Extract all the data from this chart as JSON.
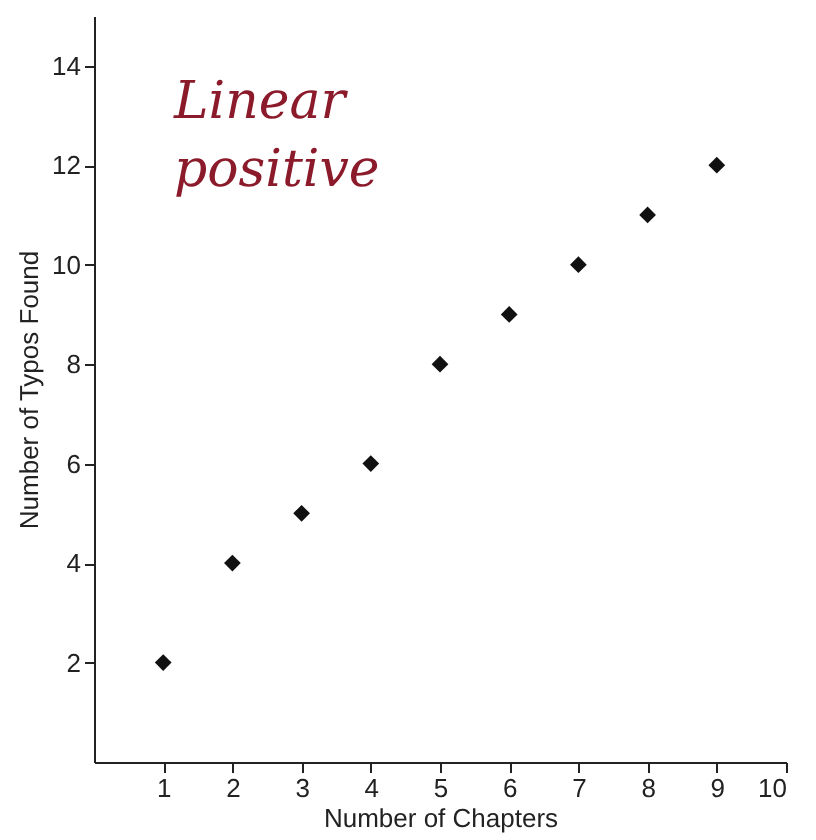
{
  "chart_data": {
    "type": "scatter",
    "xlabel": "Number of Chapters",
    "ylabel": "Number of Typos Found",
    "x": [
      1,
      2,
      3,
      4,
      5,
      6,
      7,
      8,
      9
    ],
    "values": [
      2,
      4,
      5,
      6,
      8,
      9,
      10,
      11,
      12
    ],
    "color": "#111111",
    "marker": "diamond",
    "xlim": [
      0,
      10
    ],
    "xticks": [
      1,
      2,
      3,
      4,
      5,
      6,
      7,
      8,
      9,
      10
    ],
    "ylim": [
      0,
      15
    ],
    "yticks": [
      2,
      4,
      6,
      8,
      10,
      12,
      14
    ],
    "annotations": [
      "Linear positive"
    ]
  }
}
